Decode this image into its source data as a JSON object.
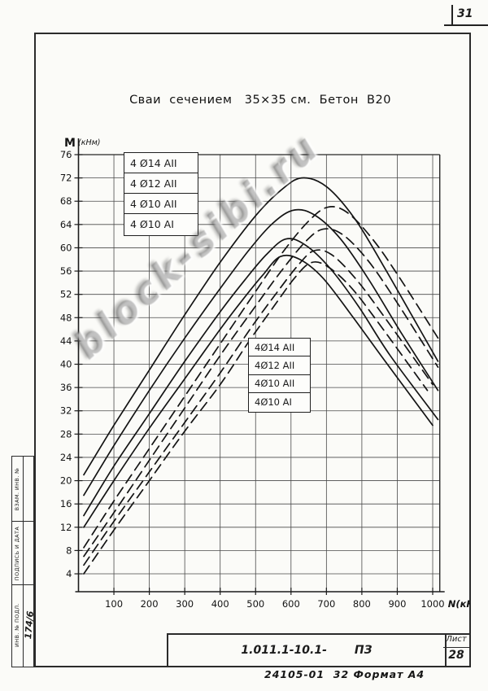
{
  "page": {
    "corner_number": "31"
  },
  "margin": {
    "stamp_labels": [
      "Взам. инв. №",
      "Подпись и дата",
      "Инв. № подл."
    ],
    "inventory_number": "174/6"
  },
  "title_block": {
    "doc_code": "1.011.1-10.1-",
    "doc_type": "ПЗ",
    "sheet_label": "Лист",
    "sheet_number": "28",
    "footer_note": "24105-01  32 Формат А4"
  },
  "watermark": "block-sibi.ru",
  "chart_data": {
    "type": "line",
    "title": "Сваи  сечением   35×35 см.  Бетон  В20",
    "xlabel": "N(кН)",
    "ylabel_letter": "M",
    "ylabel_units": "(кНм)",
    "xlim": [
      0,
      1020
    ],
    "ylim": [
      0,
      76
    ],
    "grid": true,
    "x_ticks": [
      100,
      200,
      300,
      400,
      500,
      600,
      700,
      800,
      900,
      1000
    ],
    "y_ticks": [
      76,
      72,
      68,
      64,
      60,
      56,
      52,
      48,
      44,
      40,
      36,
      32,
      28,
      24,
      20,
      16,
      12,
      8,
      4
    ],
    "legend_solid": {
      "labels": [
        "4 Ø14 АII",
        "4 Ø12 АII",
        "4 Ø10 АII",
        "4 Ø10 АI"
      ]
    },
    "legend_dashed": {
      "labels": [
        "4Ø14 АII",
        "4Ø12 АII",
        "4Ø10 АII",
        "4Ø10 АI"
      ]
    },
    "series": [
      {
        "name": "4 Ø14 АII (сплошная)",
        "style": "solid",
        "points": [
          [
            15,
            21
          ],
          [
            100,
            29.5
          ],
          [
            200,
            39
          ],
          [
            300,
            48.5
          ],
          [
            400,
            57.5
          ],
          [
            500,
            65.5
          ],
          [
            570,
            69.8
          ],
          [
            630,
            72
          ],
          [
            700,
            70.5
          ],
          [
            780,
            65
          ],
          [
            860,
            57
          ],
          [
            940,
            48.5
          ],
          [
            1015,
            40.5
          ]
        ]
      },
      {
        "name": "4 Ø12 АII (сплошная)",
        "style": "solid",
        "points": [
          [
            15,
            17.5
          ],
          [
            100,
            26
          ],
          [
            200,
            35.5
          ],
          [
            300,
            44.5
          ],
          [
            400,
            53
          ],
          [
            480,
            59.5
          ],
          [
            550,
            64.3
          ],
          [
            610,
            66.5
          ],
          [
            670,
            65.5
          ],
          [
            740,
            61.5
          ],
          [
            820,
            54.5
          ],
          [
            910,
            45.5
          ],
          [
            1015,
            35.5
          ]
        ]
      },
      {
        "name": "4 Ø10 АII (сплошная)",
        "style": "solid",
        "points": [
          [
            15,
            14
          ],
          [
            100,
            22.5
          ],
          [
            200,
            31.5
          ],
          [
            300,
            40.5
          ],
          [
            400,
            49
          ],
          [
            470,
            54.5
          ],
          [
            530,
            58.8
          ],
          [
            585,
            61.5
          ],
          [
            640,
            60.5
          ],
          [
            710,
            56.5
          ],
          [
            790,
            50
          ],
          [
            880,
            41.5
          ],
          [
            1015,
            30.5
          ]
        ]
      },
      {
        "name": "4 Ø10 АI (сплошная)",
        "style": "solid",
        "points": [
          [
            15,
            12
          ],
          [
            100,
            20
          ],
          [
            200,
            29
          ],
          [
            300,
            37.5
          ],
          [
            400,
            46
          ],
          [
            460,
            50.8
          ],
          [
            520,
            55.3
          ],
          [
            570,
            58.5
          ],
          [
            625,
            58
          ],
          [
            690,
            54.8
          ],
          [
            770,
            48.5
          ],
          [
            860,
            41
          ],
          [
            1000,
            29.5
          ]
        ]
      },
      {
        "name": "4Ø14 АII (штриховая)",
        "style": "dashed",
        "points": [
          [
            15,
            8.5
          ],
          [
            100,
            16.5
          ],
          [
            200,
            25.5
          ],
          [
            300,
            34.5
          ],
          [
            400,
            43.5
          ],
          [
            500,
            52.5
          ],
          [
            580,
            59.5
          ],
          [
            650,
            64.6
          ],
          [
            705,
            67
          ],
          [
            760,
            66
          ],
          [
            830,
            61.5
          ],
          [
            905,
            55
          ],
          [
            1015,
            44.5
          ]
        ]
      },
      {
        "name": "4Ø12 АII (штриховая)",
        "style": "dashed",
        "points": [
          [
            15,
            7
          ],
          [
            100,
            14.5
          ],
          [
            200,
            23.5
          ],
          [
            300,
            32.5
          ],
          [
            400,
            41.5
          ],
          [
            500,
            50
          ],
          [
            570,
            55.8
          ],
          [
            640,
            61
          ],
          [
            690,
            63.2
          ],
          [
            745,
            62.3
          ],
          [
            815,
            58
          ],
          [
            895,
            51
          ],
          [
            1015,
            39.5
          ]
        ]
      },
      {
        "name": "4Ø10 АII (штриховая)",
        "style": "dashed",
        "points": [
          [
            15,
            5.5
          ],
          [
            100,
            13
          ],
          [
            200,
            21.5
          ],
          [
            300,
            30
          ],
          [
            400,
            38.5
          ],
          [
            490,
            46.5
          ],
          [
            560,
            52.3
          ],
          [
            620,
            57
          ],
          [
            665,
            59.5
          ],
          [
            715,
            58.8
          ],
          [
            785,
            54.5
          ],
          [
            865,
            48
          ],
          [
            1000,
            36.5
          ]
        ]
      },
      {
        "name": "4Ø10 АI (штриховая)",
        "style": "dashed",
        "points": [
          [
            15,
            4
          ],
          [
            100,
            11.5
          ],
          [
            200,
            20
          ],
          [
            300,
            28.5
          ],
          [
            400,
            36.5
          ],
          [
            480,
            43.8
          ],
          [
            550,
            49.8
          ],
          [
            610,
            54.8
          ],
          [
            655,
            57.4
          ],
          [
            700,
            56.9
          ],
          [
            768,
            53.3
          ],
          [
            848,
            47
          ],
          [
            985,
            35.5
          ]
        ]
      }
    ]
  }
}
